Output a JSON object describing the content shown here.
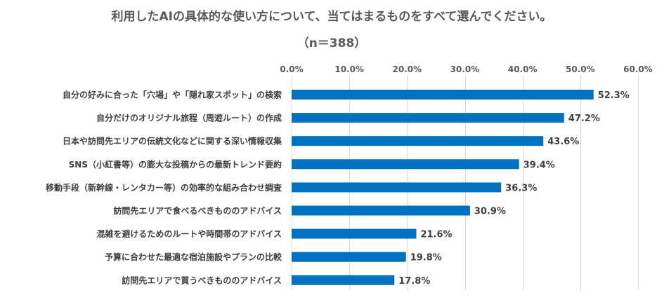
{
  "chart_data": {
    "type": "bar",
    "orientation": "horizontal",
    "title": "利用したAIの具体的な使い方について、当てはまるものをすべて選んでください。",
    "subtitle": "（n＝388）",
    "categories": [
      "自分の好みに合った「穴場」や「隠れ家スポット」の検索",
      "自分だけのオリジナル旅程（周遊ルート）の作成",
      "日本や訪問先エリアの伝統文化などに関する深い情報収集",
      "SNS（小紅書等）の膨大な投稿からの最新トレンド要約",
      "移動手段（新幹線・レンタカー等）の効率的な組み合わせ調査",
      "訪問先エリアで食べるべきもののアドバイス",
      "混雑を避けるためのルートや時間帯のアドバイス",
      "予算に合わせた最適な宿泊施設やプランの比較",
      "訪問先エリアで買うべきもののアドバイス"
    ],
    "values": [
      52.3,
      47.2,
      43.6,
      39.4,
      36.3,
      30.9,
      21.6,
      19.8,
      17.8
    ],
    "value_labels": [
      "52.3%",
      "47.2%",
      "43.6%",
      "39.4%",
      "36.3%",
      "30.9%",
      "21.6%",
      "19.8%",
      "17.8%"
    ],
    "xlim": [
      0,
      60
    ],
    "x_ticks": [
      0,
      10,
      20,
      30,
      40,
      50,
      60
    ],
    "x_tick_labels": [
      "0.0%",
      "10.0%",
      "20.0%",
      "30.0%",
      "40.0%",
      "50.0%",
      "60.0%"
    ],
    "xlabel": "",
    "ylabel": "",
    "grid": true,
    "axis_position": "top",
    "bar_color": "#0070c0",
    "grid_color": "#d9d9d9"
  }
}
